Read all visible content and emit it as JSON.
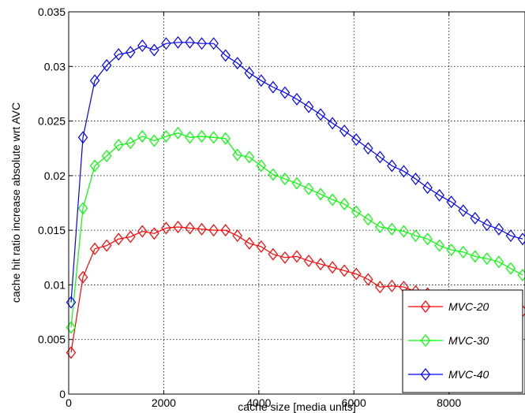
{
  "chart_data": {
    "type": "line",
    "title": "",
    "xlabel": "cache size [media units]",
    "ylabel": "cache hit ratio increase absolute wrt AVC",
    "xlim": [
      0,
      9600
    ],
    "ylim": [
      0,
      0.035
    ],
    "xticks": [
      0,
      2000,
      4000,
      6000,
      8000
    ],
    "xtick_labels": [
      "0",
      "2000",
      "4000",
      "6000",
      "8000"
    ],
    "yticks": [
      0,
      0.005,
      0.01,
      0.015,
      0.02,
      0.025,
      0.03,
      0.035
    ],
    "ytick_labels": [
      "0",
      "0.005",
      "0.01",
      "0.015",
      "0.02",
      "0.025",
      "0.03",
      "0.035"
    ],
    "grid": true,
    "legend_position": "bottom-right",
    "marker": "diamond",
    "x": [
      50,
      300,
      550,
      800,
      1050,
      1300,
      1550,
      1800,
      2050,
      2300,
      2550,
      2800,
      3050,
      3300,
      3550,
      3800,
      4050,
      4300,
      4550,
      4800,
      5050,
      5300,
      5550,
      5800,
      6050,
      6300,
      6550,
      6800,
      7050,
      7300,
      7550,
      7800,
      8050,
      8300,
      8550,
      8800,
      9050,
      9300,
      9550
    ],
    "series": [
      {
        "name": "MVC-20",
        "color": "#ff0000",
        "values": [
          0.0038,
          0.0107,
          0.0133,
          0.0136,
          0.0142,
          0.0144,
          0.0149,
          0.0147,
          0.0152,
          0.0153,
          0.0152,
          0.0151,
          0.015,
          0.015,
          0.0145,
          0.0138,
          0.0135,
          0.0128,
          0.0125,
          0.0126,
          0.0122,
          0.0119,
          0.0116,
          0.0113,
          0.011,
          0.0105,
          0.0098,
          0.0099,
          0.0098,
          0.0094,
          0.0092,
          0.0089,
          0.0088,
          0.0085,
          0.0083,
          0.008,
          0.0078,
          0.0077,
          0.0076
        ]
      },
      {
        "name": "MVC-30",
        "color": "#00ff00",
        "values": [
          0.0061,
          0.017,
          0.0209,
          0.0218,
          0.0228,
          0.023,
          0.0236,
          0.0232,
          0.0236,
          0.0239,
          0.0235,
          0.0236,
          0.0235,
          0.0234,
          0.0219,
          0.0217,
          0.0209,
          0.0201,
          0.0197,
          0.0193,
          0.0188,
          0.0183,
          0.0178,
          0.0174,
          0.0167,
          0.016,
          0.0153,
          0.0151,
          0.0149,
          0.0145,
          0.0142,
          0.0136,
          0.0132,
          0.013,
          0.0126,
          0.0124,
          0.0121,
          0.0115,
          0.0109
        ]
      },
      {
        "name": "MVC-40",
        "color": "#0000ff",
        "values": [
          0.0084,
          0.0235,
          0.0287,
          0.0301,
          0.0311,
          0.0313,
          0.0319,
          0.0315,
          0.0321,
          0.0322,
          0.0322,
          0.0321,
          0.0321,
          0.031,
          0.0303,
          0.0294,
          0.0287,
          0.0281,
          0.0276,
          0.027,
          0.0263,
          0.0256,
          0.0248,
          0.0241,
          0.0233,
          0.0225,
          0.0217,
          0.0209,
          0.0204,
          0.0197,
          0.0189,
          0.0182,
          0.0176,
          0.0168,
          0.0161,
          0.0155,
          0.0151,
          0.0145,
          0.0142
        ]
      }
    ]
  }
}
